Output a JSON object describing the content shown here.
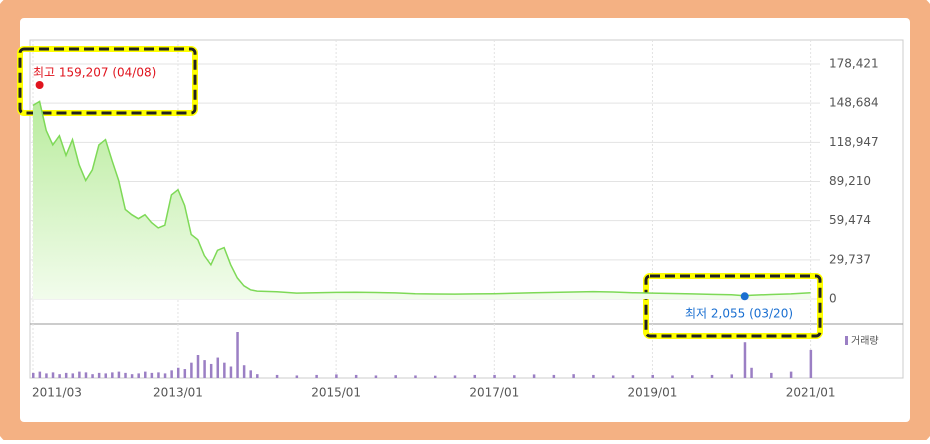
{
  "chart_data": {
    "type": "line",
    "x": [
      "2011/03",
      "2011/04",
      "2011/05",
      "2011/06",
      "2011/07",
      "2011/08",
      "2011/09",
      "2011/10",
      "2011/11",
      "2011/12",
      "2012/01",
      "2012/02",
      "2012/03",
      "2012/04",
      "2012/05",
      "2012/06",
      "2012/07",
      "2012/08",
      "2012/09",
      "2012/10",
      "2012/11",
      "2012/12",
      "2013/01",
      "2013/02",
      "2013/03",
      "2013/04",
      "2013/05",
      "2013/06",
      "2013/07",
      "2013/08",
      "2013/09",
      "2013/10",
      "2013/11",
      "2013/12",
      "2014/01",
      "2014/04",
      "2014/07",
      "2014/10",
      "2015/01",
      "2015/04",
      "2015/07",
      "2015/10",
      "2016/01",
      "2016/04",
      "2016/07",
      "2016/10",
      "2017/01",
      "2017/04",
      "2017/07",
      "2017/10",
      "2018/01",
      "2018/04",
      "2018/07",
      "2018/10",
      "2019/01",
      "2019/04",
      "2019/07",
      "2019/10",
      "2020/01",
      "2020/03",
      "2020/04",
      "2020/07",
      "2020/10",
      "2021/01"
    ],
    "series": [
      {
        "color": "#7ed957",
        "values": [
          147000,
          150000,
          128000,
          117000,
          124000,
          109000,
          121000,
          102000,
          90000,
          98000,
          117000,
          121000,
          105000,
          90000,
          68000,
          64000,
          61000,
          64000,
          58000,
          54000,
          56000,
          79000,
          83000,
          71000,
          49000,
          45000,
          33000,
          26000,
          37000,
          39000,
          26000,
          16000,
          10000,
          7000,
          6000,
          5500,
          4500,
          4800,
          5000,
          5200,
          4900,
          4600,
          4000,
          3800,
          3700,
          3900,
          4000,
          4300,
          4800,
          5000,
          5300,
          5600,
          5300,
          4800,
          4500,
          4200,
          3900,
          3500,
          3200,
          2400,
          2900,
          3400,
          3900,
          4800
        ]
      },
      {
        "name": "거래량",
        "color": "#9b7fc4",
        "values": [
          20,
          25,
          18,
          22,
          15,
          20,
          18,
          25,
          22,
          15,
          20,
          18,
          22,
          25,
          20,
          15,
          18,
          25,
          20,
          22,
          18,
          30,
          40,
          35,
          60,
          90,
          70,
          55,
          80,
          60,
          45,
          180,
          50,
          30,
          15,
          12,
          10,
          12,
          14,
          12,
          10,
          11,
          10,
          9,
          10,
          12,
          12,
          11,
          14,
          12,
          15,
          12,
          10,
          11,
          12,
          10,
          11,
          12,
          14,
          140,
          40,
          20,
          25,
          110
        ]
      }
    ],
    "yticks": [
      0,
      {
        "value": 29737,
        "label": "29,737"
      },
      {
        "value": 59474,
        "label": "59,474"
      },
      {
        "value": 89210,
        "label": "89,210"
      },
      {
        "value": 118947,
        "label": "118,947"
      },
      {
        "value": 148684,
        "label": "148,684"
      },
      {
        "value": 178421,
        "label": "178,421"
      }
    ],
    "ylim": [
      0,
      178421
    ],
    "xticks": [
      "2011/03",
      "2013/01",
      "2015/01",
      "2017/01",
      "2019/01",
      "2021/01"
    ],
    "high": {
      "text": "최고 159,207 (04/08)",
      "value": 159207,
      "x": "2011/04",
      "color": "#e0141e"
    },
    "low": {
      "text": "최저 2,055 (03/20)",
      "value": 2055,
      "x": "2020/03",
      "color": "#1a6fd1"
    }
  }
}
